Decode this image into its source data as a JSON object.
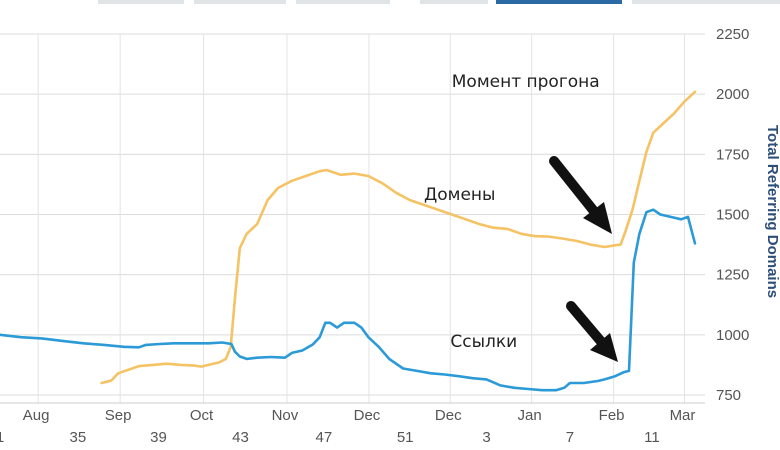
{
  "chart_data": {
    "type": "line",
    "y_axis_title": "Total Referring Domains",
    "y_ticks": [
      750,
      1000,
      1250,
      1500,
      1750,
      2000,
      2250
    ],
    "ylim": [
      720,
      2250
    ],
    "xlim": [
      0,
      100
    ],
    "month_labels": [
      {
        "label": "Aug",
        "x": 5.2
      },
      {
        "label": "Sep",
        "x": 17
      },
      {
        "label": "Oct",
        "x": 29
      },
      {
        "label": "Nov",
        "x": 41
      },
      {
        "label": "Dec",
        "x": 52.8
      },
      {
        "label": "Dec",
        "x": 64.5
      },
      {
        "label": "Jan",
        "x": 76.2
      },
      {
        "label": "Feb",
        "x": 88
      },
      {
        "label": "Mar",
        "x": 98.2
      }
    ],
    "week_labels": [
      {
        "label": "1",
        "x": 0
      },
      {
        "label": "35",
        "x": 11.2
      },
      {
        "label": "39",
        "x": 22.8
      },
      {
        "label": "43",
        "x": 34.6
      },
      {
        "label": "47",
        "x": 46.6
      },
      {
        "label": "51",
        "x": 58.3
      },
      {
        "label": "3",
        "x": 70
      },
      {
        "label": "7",
        "x": 82
      },
      {
        "label": "11",
        "x": 93.8
      }
    ],
    "series": [
      {
        "name": "Домены",
        "color": "#f5c264",
        "points": [
          [
            14.6,
            800
          ],
          [
            16,
            810
          ],
          [
            17,
            840
          ],
          [
            18.5,
            855
          ],
          [
            20,
            870
          ],
          [
            22,
            875
          ],
          [
            24,
            880
          ],
          [
            26,
            875
          ],
          [
            28,
            872
          ],
          [
            29,
            868
          ],
          [
            30,
            875
          ],
          [
            31.5,
            885
          ],
          [
            32.5,
            900
          ],
          [
            33.2,
            950
          ],
          [
            33.8,
            1150
          ],
          [
            34.5,
            1360
          ],
          [
            35.5,
            1420
          ],
          [
            37,
            1460
          ],
          [
            38.5,
            1560
          ],
          [
            40,
            1610
          ],
          [
            42,
            1640
          ],
          [
            44,
            1660
          ],
          [
            46,
            1680
          ],
          [
            47,
            1685
          ],
          [
            48,
            1675
          ],
          [
            49,
            1665
          ],
          [
            51,
            1670
          ],
          [
            53,
            1660
          ],
          [
            55,
            1630
          ],
          [
            57,
            1590
          ],
          [
            59,
            1560
          ],
          [
            61,
            1540
          ],
          [
            63,
            1520
          ],
          [
            65,
            1500
          ],
          [
            67,
            1480
          ],
          [
            69,
            1460
          ],
          [
            71,
            1445
          ],
          [
            73,
            1440
          ],
          [
            75,
            1420
          ],
          [
            77,
            1410
          ],
          [
            79,
            1408
          ],
          [
            81,
            1400
          ],
          [
            83,
            1390
          ],
          [
            85,
            1375
          ],
          [
            87,
            1365
          ],
          [
            88.5,
            1372
          ],
          [
            89.3,
            1375
          ],
          [
            90,
            1430
          ],
          [
            91,
            1520
          ],
          [
            92,
            1640
          ],
          [
            93,
            1760
          ],
          [
            94,
            1840
          ],
          [
            95.5,
            1880
          ],
          [
            97,
            1920
          ],
          [
            98.5,
            1970
          ],
          [
            100,
            2010
          ]
        ]
      },
      {
        "name": "Ссылки",
        "color": "#2b9ad6",
        "points": [
          [
            0,
            1000
          ],
          [
            3,
            990
          ],
          [
            6,
            985
          ],
          [
            9,
            975
          ],
          [
            12,
            965
          ],
          [
            15,
            958
          ],
          [
            18,
            950
          ],
          [
            20,
            948
          ],
          [
            21,
            958
          ],
          [
            23,
            962
          ],
          [
            25,
            965
          ],
          [
            28,
            965
          ],
          [
            30,
            965
          ],
          [
            32,
            968
          ],
          [
            33.3,
            962
          ],
          [
            33.8,
            930
          ],
          [
            34.5,
            910
          ],
          [
            35.5,
            900
          ],
          [
            37,
            905
          ],
          [
            39,
            908
          ],
          [
            41,
            905
          ],
          [
            42,
            925
          ],
          [
            43.5,
            935
          ],
          [
            45,
            960
          ],
          [
            46,
            990
          ],
          [
            46.8,
            1050
          ],
          [
            47.5,
            1050
          ],
          [
            48.5,
            1030
          ],
          [
            49.5,
            1050
          ],
          [
            51,
            1050
          ],
          [
            52,
            1030
          ],
          [
            53,
            990
          ],
          [
            54.5,
            950
          ],
          [
            56,
            900
          ],
          [
            58,
            860
          ],
          [
            60,
            850
          ],
          [
            62,
            840
          ],
          [
            64,
            835
          ],
          [
            66,
            828
          ],
          [
            68,
            820
          ],
          [
            70,
            815
          ],
          [
            72,
            790
          ],
          [
            74,
            780
          ],
          [
            76,
            775
          ],
          [
            78,
            770
          ],
          [
            80,
            770
          ],
          [
            81.2,
            780
          ],
          [
            82,
            800
          ],
          [
            84,
            800
          ],
          [
            86,
            808
          ],
          [
            87,
            815
          ],
          [
            88.5,
            828
          ],
          [
            89.8,
            845
          ],
          [
            90.5,
            850
          ],
          [
            91.2,
            1300
          ],
          [
            92,
            1420
          ],
          [
            93,
            1510
          ],
          [
            94,
            1520
          ],
          [
            95,
            1500
          ],
          [
            96.5,
            1490
          ],
          [
            98,
            1480
          ],
          [
            99,
            1490
          ],
          [
            100,
            1380
          ]
        ]
      }
    ],
    "annotations": [
      {
        "text": "Момент прогона",
        "x": 65,
        "y": 2030
      },
      {
        "text": "Домены",
        "x": 61,
        "y": 1560
      },
      {
        "text": "Ссылки",
        "x": 64.8,
        "y": 950
      }
    ]
  }
}
